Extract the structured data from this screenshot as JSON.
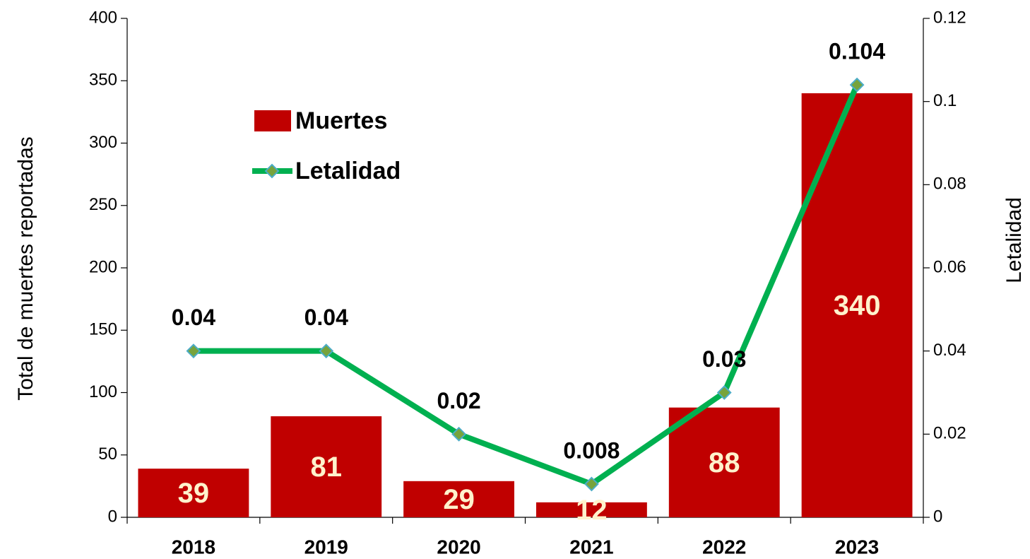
{
  "chart_data": {
    "type": "bar-line",
    "categories": [
      "2018",
      "2019",
      "2020",
      "2021",
      "2022",
      "2023"
    ],
    "series": [
      {
        "name": "Muertes",
        "type": "bar",
        "color": "#c00000",
        "label_color": "#fff2cc",
        "values": [
          39,
          81,
          29,
          12,
          88,
          340
        ]
      },
      {
        "name": "Letalidad",
        "type": "line",
        "axis": "y2",
        "color": "#00b050",
        "marker_fill": "#77a33c",
        "marker_stroke": "#4bacc6",
        "values": [
          0.04,
          0.04,
          0.02,
          0.008,
          0.03,
          0.104
        ]
      }
    ],
    "ylabel": "Total de muertes reportadas",
    "y2label": "Letalidad",
    "ylim": [
      0,
      400
    ],
    "yticks": [
      0,
      50,
      100,
      150,
      200,
      250,
      300,
      350,
      400
    ],
    "y2lim": [
      0,
      0.12
    ],
    "y2ticks": [
      0,
      0.02,
      0.04,
      0.06,
      0.08,
      0.1,
      0.12
    ],
    "legend": "upper left"
  }
}
